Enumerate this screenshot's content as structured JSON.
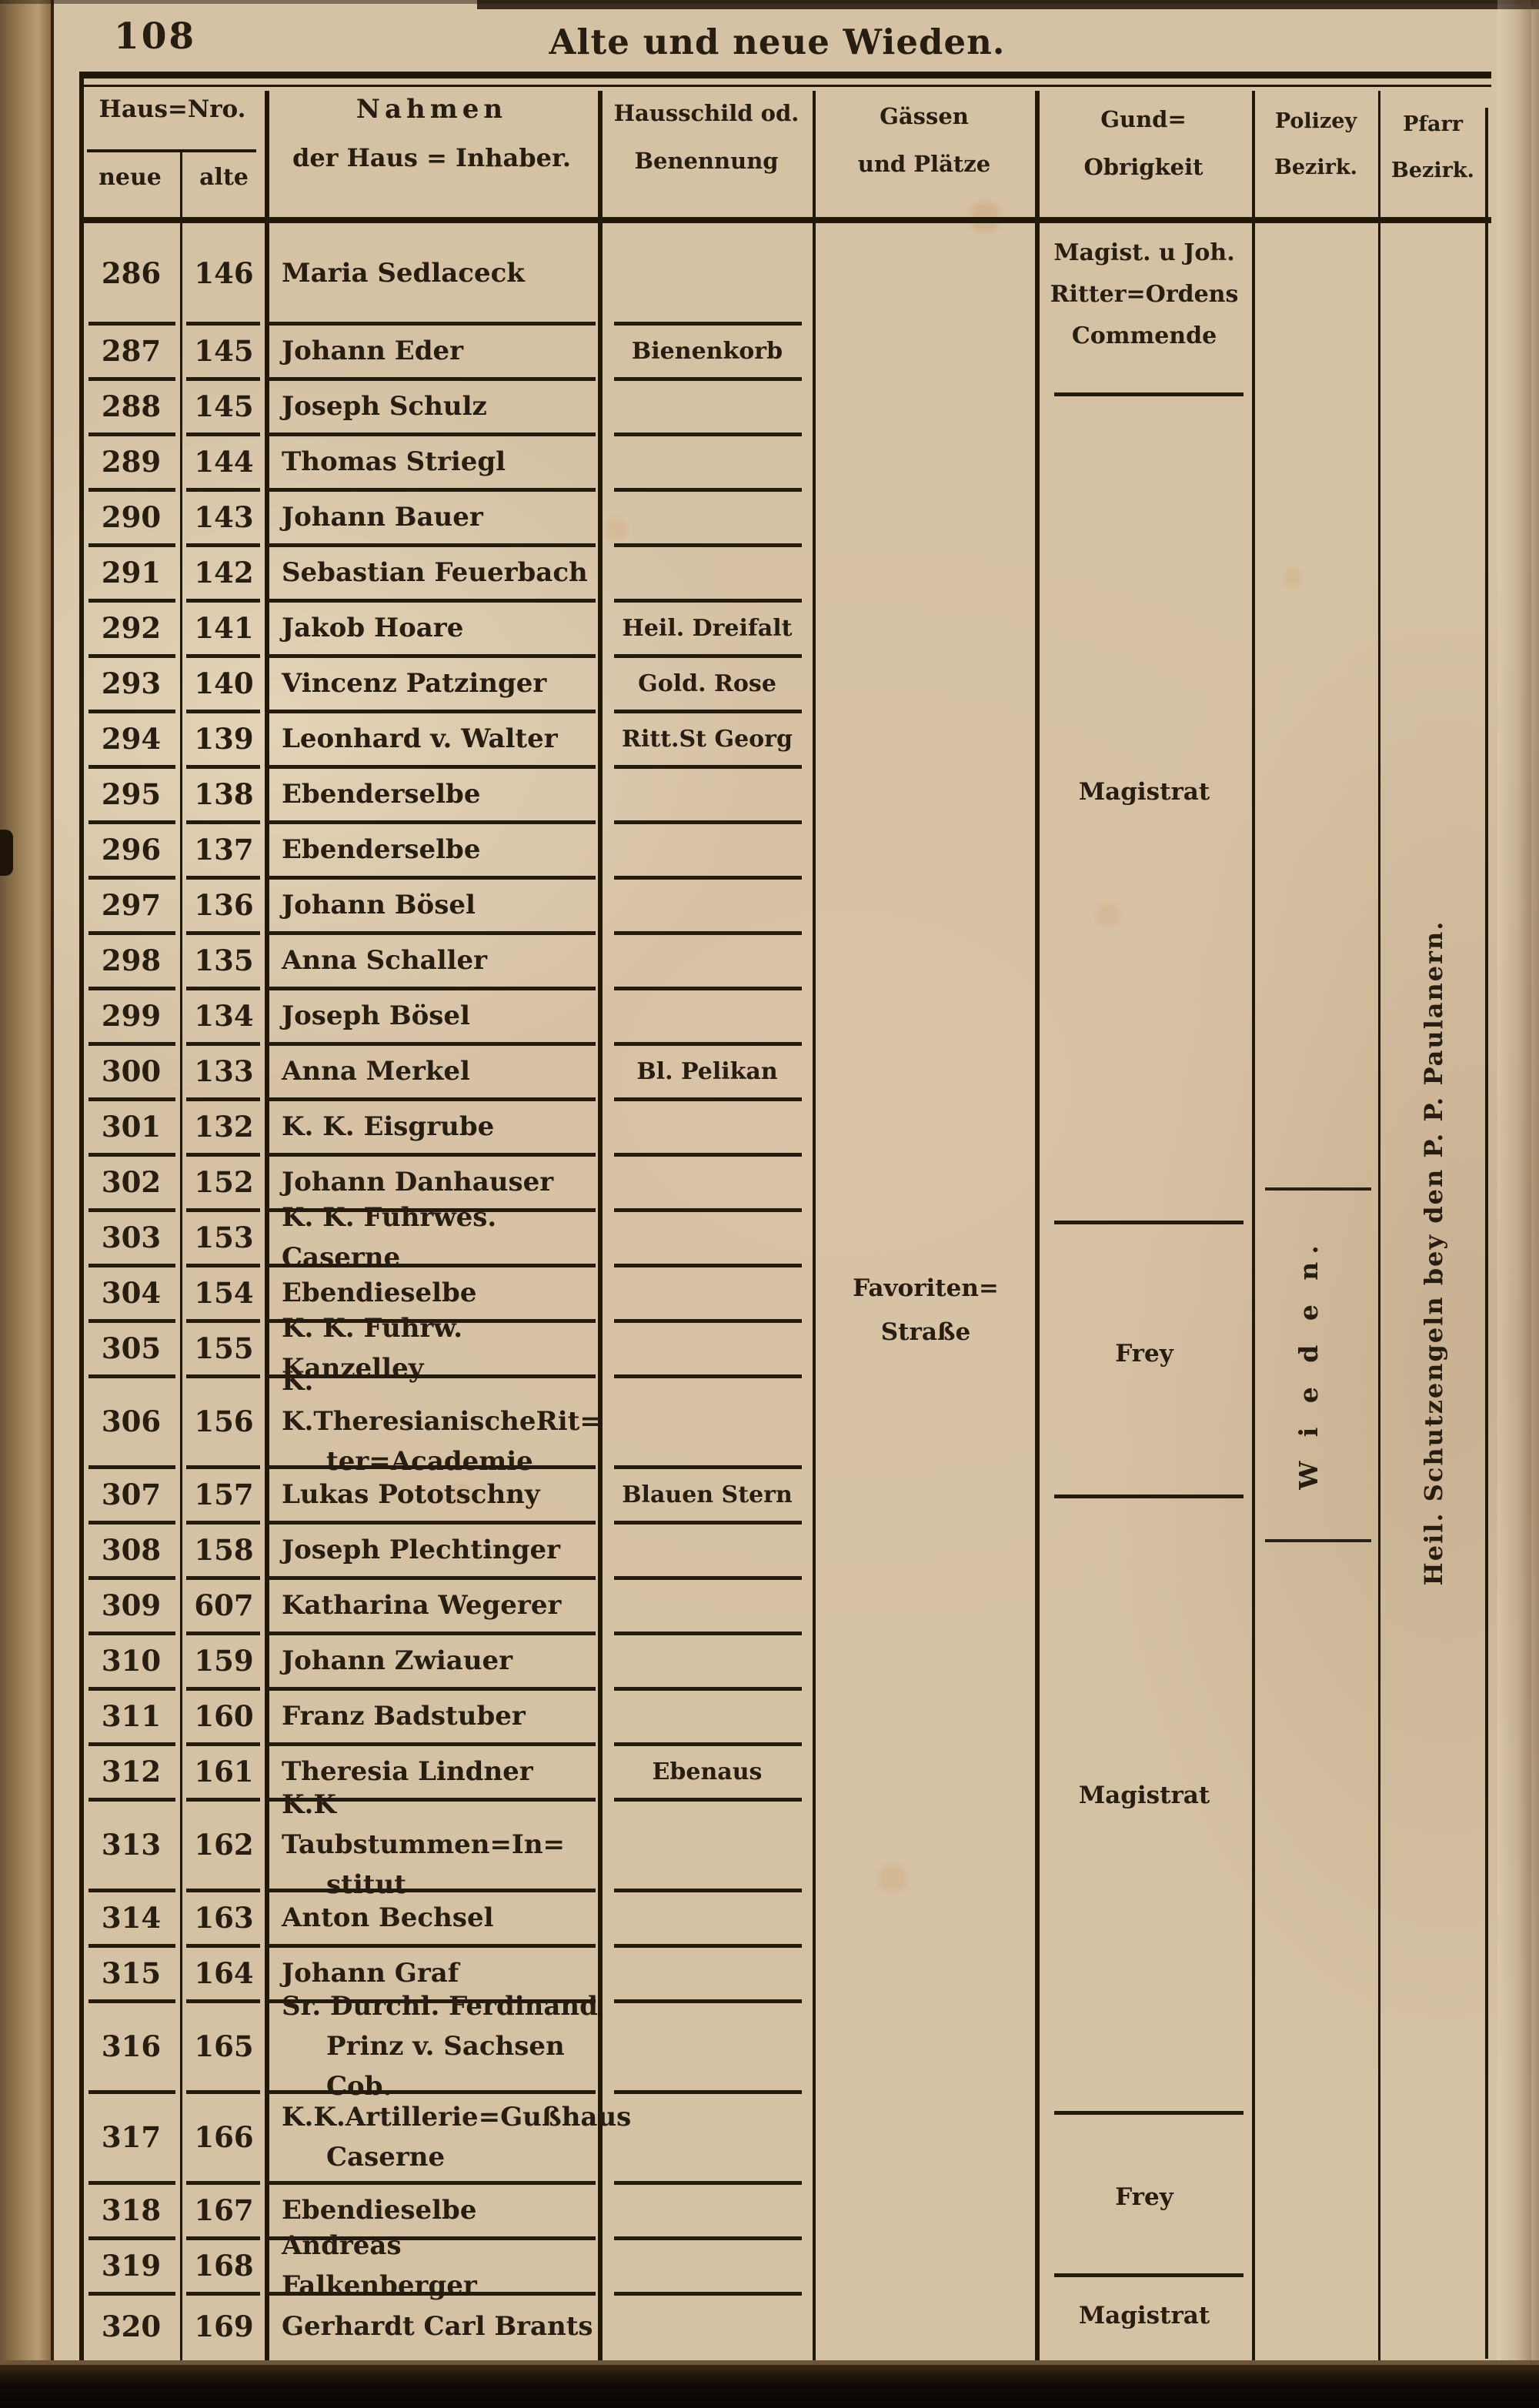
{
  "page": {
    "number": "108",
    "title": "Alte und neue Wieden."
  },
  "header": {
    "haus_nro": "Haus=Nro.",
    "neue": "neue",
    "alte": "alte",
    "nahmen_l1": "Nahmen",
    "nahmen_l2": "der Haus = Inhaber.",
    "hausschild_l1": "Hausschild od.",
    "hausschild_l2": "Benennung",
    "gassen_l1": "Gässen",
    "gassen_l2": "und Plätze",
    "grund_l1": "Gund=",
    "grund_l2": "Obrigkeit",
    "polizey_l1": "Polizey",
    "polizey_l2": "Bezirk.",
    "pfarr_l1": "Pfarr",
    "pfarr_l2": "Bezirk."
  },
  "rows": [
    {
      "neue": "286",
      "alte": "146",
      "name": [
        "Maria Sedlaceck"
      ],
      "schild": ""
    },
    {
      "neue": "287",
      "alte": "145",
      "name": [
        "Johann Eder"
      ],
      "schild": "Bienenkorb"
    },
    {
      "neue": "288",
      "alte": "145",
      "name": [
        "Joseph Schulz"
      ],
      "schild": ""
    },
    {
      "neue": "289",
      "alte": "144",
      "name": [
        "Thomas Striegl"
      ],
      "schild": ""
    },
    {
      "neue": "290",
      "alte": "143",
      "name": [
        "Johann Bauer"
      ],
      "schild": ""
    },
    {
      "neue": "291",
      "alte": "142",
      "name": [
        "Sebastian Feuerbach"
      ],
      "schild": ""
    },
    {
      "neue": "292",
      "alte": "141",
      "name": [
        "Jakob Hoare"
      ],
      "schild": "Heil. Dreifalt"
    },
    {
      "neue": "293",
      "alte": "140",
      "name": [
        "Vincenz Patzinger"
      ],
      "schild": "Gold. Rose"
    },
    {
      "neue": "294",
      "alte": "139",
      "name": [
        "Leonhard v. Walter"
      ],
      "schild": "Ritt.St Georg"
    },
    {
      "neue": "295",
      "alte": "138",
      "name": [
        "Ebenderselbe"
      ],
      "schild": ""
    },
    {
      "neue": "296",
      "alte": "137",
      "name": [
        "Ebenderselbe"
      ],
      "schild": ""
    },
    {
      "neue": "297",
      "alte": "136",
      "name": [
        "Johann Bösel"
      ],
      "schild": ""
    },
    {
      "neue": "298",
      "alte": "135",
      "name": [
        "Anna Schaller"
      ],
      "schild": ""
    },
    {
      "neue": "299",
      "alte": "134",
      "name": [
        "Joseph Bösel"
      ],
      "schild": ""
    },
    {
      "neue": "300",
      "alte": "133",
      "name": [
        "Anna Merkel"
      ],
      "schild": "Bl. Pelikan"
    },
    {
      "neue": "301",
      "alte": "132",
      "name": [
        "K. K. Eisgrube"
      ],
      "schild": ""
    },
    {
      "neue": "302",
      "alte": "152",
      "name": [
        "Johann Danhauser"
      ],
      "schild": ""
    },
    {
      "neue": "303",
      "alte": "153",
      "name": [
        "K. K. Fuhrwes. Caserne"
      ],
      "schild": ""
    },
    {
      "neue": "304",
      "alte": "154",
      "name": [
        "Ebendieselbe"
      ],
      "schild": ""
    },
    {
      "neue": "305",
      "alte": "155",
      "name": [
        "K. K. Fuhrw. Kanzelley"
      ],
      "schild": ""
    },
    {
      "neue": "306",
      "alte": "156",
      "name": [
        "K. K.TheresianischeRit=",
        "ter=Academie"
      ],
      "schild": ""
    },
    {
      "neue": "307",
      "alte": "157",
      "name": [
        "Lukas Pototschny"
      ],
      "schild": "Blauen Stern"
    },
    {
      "neue": "308",
      "alte": "158",
      "name": [
        "Joseph Plechtinger"
      ],
      "schild": ""
    },
    {
      "neue": "309",
      "alte": "607",
      "name": [
        "Katharina Wegerer"
      ],
      "schild": ""
    },
    {
      "neue": "310",
      "alte": "159",
      "name": [
        "Johann Zwiauer"
      ],
      "schild": ""
    },
    {
      "neue": "311",
      "alte": "160",
      "name": [
        "Franz Badstuber"
      ],
      "schild": ""
    },
    {
      "neue": "312",
      "alte": "161",
      "name": [
        "Theresia Lindner"
      ],
      "schild": "Ebenaus"
    },
    {
      "neue": "313",
      "alte": "162",
      "name": [
        "K.K Taubstummen=In=",
        "stitut"
      ],
      "schild": ""
    },
    {
      "neue": "314",
      "alte": "163",
      "name": [
        "Anton Bechsel"
      ],
      "schild": ""
    },
    {
      "neue": "315",
      "alte": "164",
      "name": [
        "Johann Graf"
      ],
      "schild": ""
    },
    {
      "neue": "316",
      "alte": "165",
      "name": [
        "Sr. Durchl. Ferdinand",
        "Prinz v. Sachsen Cob."
      ],
      "schild": ""
    },
    {
      "neue": "317",
      "alte": "166",
      "name": [
        "K.K.Artillerie=Gußhaus",
        "Caserne"
      ],
      "schild": ""
    },
    {
      "neue": "318",
      "alte": "167",
      "name": [
        "Ebendieselbe"
      ],
      "schild": ""
    },
    {
      "neue": "319",
      "alte": "168",
      "name": [
        "Andreas Falkenberger"
      ],
      "schild": ""
    },
    {
      "neue": "320",
      "alte": "169",
      "name": [
        "Gerhardt Carl Brants"
      ],
      "schild": ""
    }
  ],
  "overlays": {
    "gassen_street_l1": "Favoriten=",
    "gassen_street_l2": "Straße",
    "grund": [
      {
        "lines": [
          "Magist. u Joh.",
          "Ritter=Ordens",
          "Commende"
        ]
      },
      {
        "lines": [
          "Magistrat"
        ]
      },
      {
        "lines": [
          "Frey"
        ]
      },
      {
        "lines": [
          "Magistrat"
        ]
      },
      {
        "lines": [
          "Frey"
        ]
      },
      {
        "lines": [
          "Magistrat"
        ]
      }
    ],
    "polizey_vertical": "W i e d e n.",
    "pfarr_vertical": "Heil. Schutzengeln bey den P. P. Paulanern."
  }
}
